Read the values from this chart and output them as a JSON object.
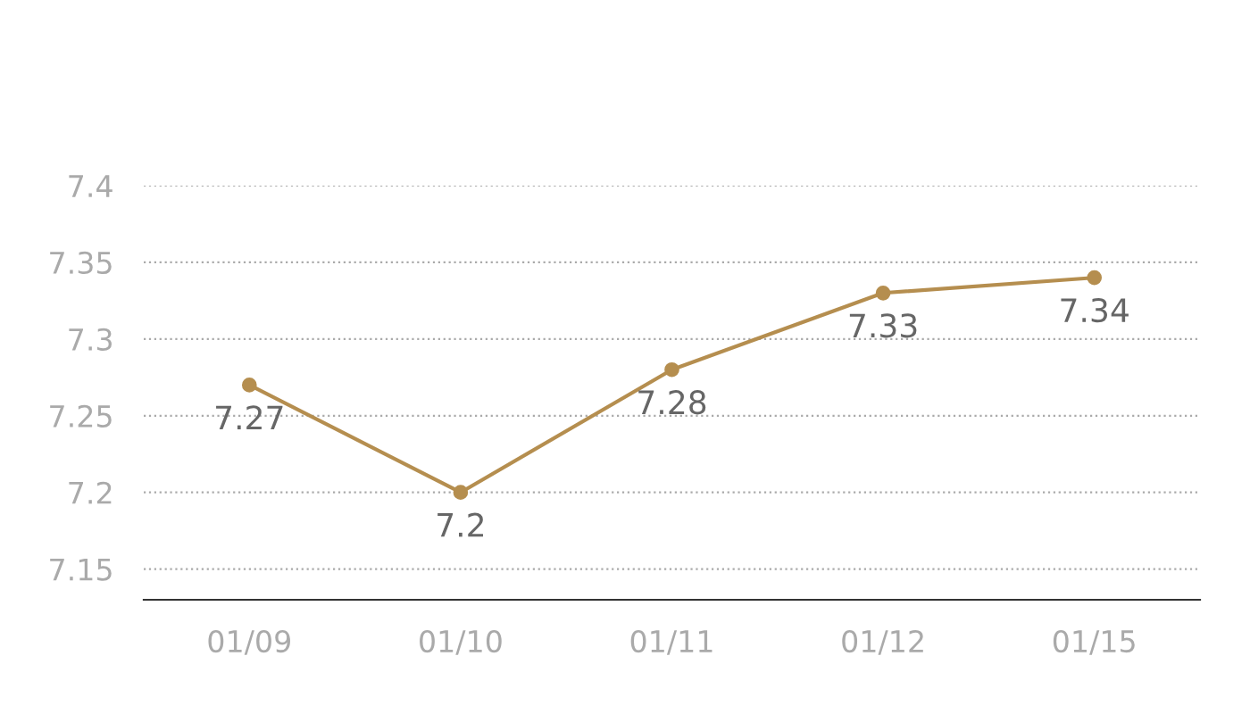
{
  "chart_data": {
    "type": "line",
    "categories": [
      "01/09",
      "01/10",
      "01/11",
      "01/12",
      "01/15"
    ],
    "series": [
      {
        "color": "#b58e4f",
        "values": [
          7.27,
          7.2,
          7.28,
          7.33,
          7.34
        ]
      }
    ],
    "ylim": [
      7.13,
      7.4
    ],
    "yticks": [
      7.15,
      7.2,
      7.25,
      7.3,
      7.35,
      7.4
    ],
    "grid": "y",
    "marker": "circle",
    "line_style": "solid",
    "data_labels": true
  }
}
